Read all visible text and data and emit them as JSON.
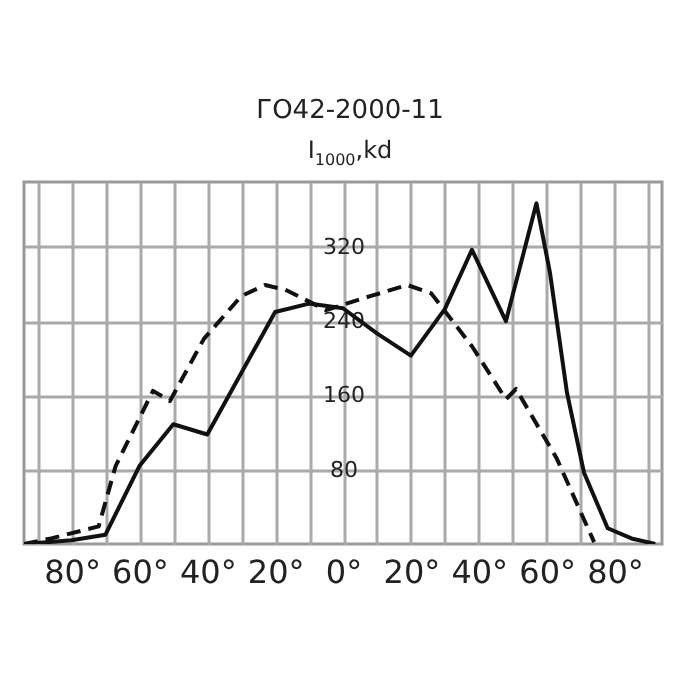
{
  "chart_data": {
    "type": "line",
    "title": "ГО42-2000-11",
    "ylabel": "I$_{1000}$,kd",
    "xlim": [
      -94,
      94
    ],
    "ylim": [
      0,
      390
    ],
    "xticks": [
      {
        "value": -90,
        "label": null
      },
      {
        "value": -80,
        "label": "80°"
      },
      {
        "value": -70,
        "label": null
      },
      {
        "value": -60,
        "label": "60°"
      },
      {
        "value": -50,
        "label": null
      },
      {
        "value": -40,
        "label": "40°"
      },
      {
        "value": -30,
        "label": null
      },
      {
        "value": -20,
        "label": "20°"
      },
      {
        "value": -10,
        "label": null
      },
      {
        "value": 0,
        "label": "0°"
      },
      {
        "value": 10,
        "label": null
      },
      {
        "value": 20,
        "label": "20°"
      },
      {
        "value": 30,
        "label": null
      },
      {
        "value": 40,
        "label": "40°"
      },
      {
        "value": 50,
        "label": null
      },
      {
        "value": 60,
        "label": "60°"
      },
      {
        "value": 70,
        "label": null
      },
      {
        "value": 80,
        "label": "80°"
      },
      {
        "value": 90,
        "label": null
      }
    ],
    "yticks": [
      80,
      160,
      240,
      320
    ],
    "grid": true,
    "series": [
      {
        "color": "#111111",
        "line_style": "solid",
        "x": [
          -94,
          -80,
          -70,
          -60,
          -50,
          -40,
          -20,
          -10,
          0,
          10,
          20,
          30,
          38,
          48,
          57,
          61,
          66,
          71,
          78,
          85,
          92
        ],
        "values": [
          0,
          4,
          10,
          84,
          129,
          118,
          250,
          259,
          254,
          227,
          203,
          253,
          317,
          240,
          367,
          292,
          163,
          77,
          17,
          6,
          0
        ]
      },
      {
        "color": "#111111",
        "line_style": "dashed",
        "x": [
          -94,
          -86,
          -72,
          -67,
          -56,
          -51,
          -41,
          -30,
          -23,
          -17,
          -5,
          8,
          19,
          26,
          38,
          48,
          51,
          63,
          74
        ],
        "values": [
          0,
          6,
          19,
          84,
          165,
          154,
          221,
          267,
          279,
          274,
          252,
          267,
          279,
          270,
          213,
          156,
          167,
          92,
          2
        ]
      }
    ]
  }
}
